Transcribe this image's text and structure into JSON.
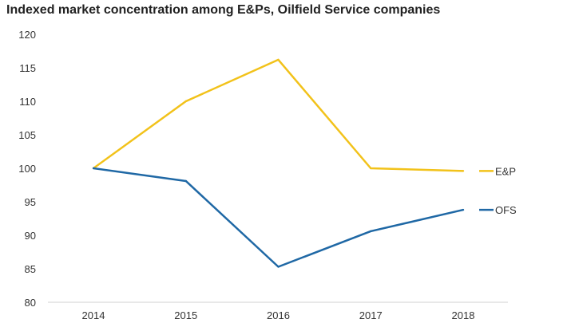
{
  "title": "Indexed market concentration among E&Ps, Oilfield Service companies",
  "chart_data": {
    "type": "line",
    "title": "Indexed market concentration among E&Ps, Oilfield Service companies",
    "x": [
      "2014",
      "2015",
      "2016",
      "2017",
      "2018"
    ],
    "ylim": [
      80,
      120
    ],
    "yticks": [
      80,
      85,
      90,
      95,
      100,
      105,
      110,
      115,
      120
    ],
    "grid": false,
    "legend": "right, at line ends",
    "series": [
      {
        "name": "E&P",
        "color": "#f2c21a",
        "values": [
          100,
          110,
          116.2,
          100,
          99.6
        ]
      },
      {
        "name": "OFS",
        "color": "#1f68a5",
        "values": [
          100,
          98.1,
          85.3,
          90.6,
          93.8
        ]
      }
    ]
  }
}
